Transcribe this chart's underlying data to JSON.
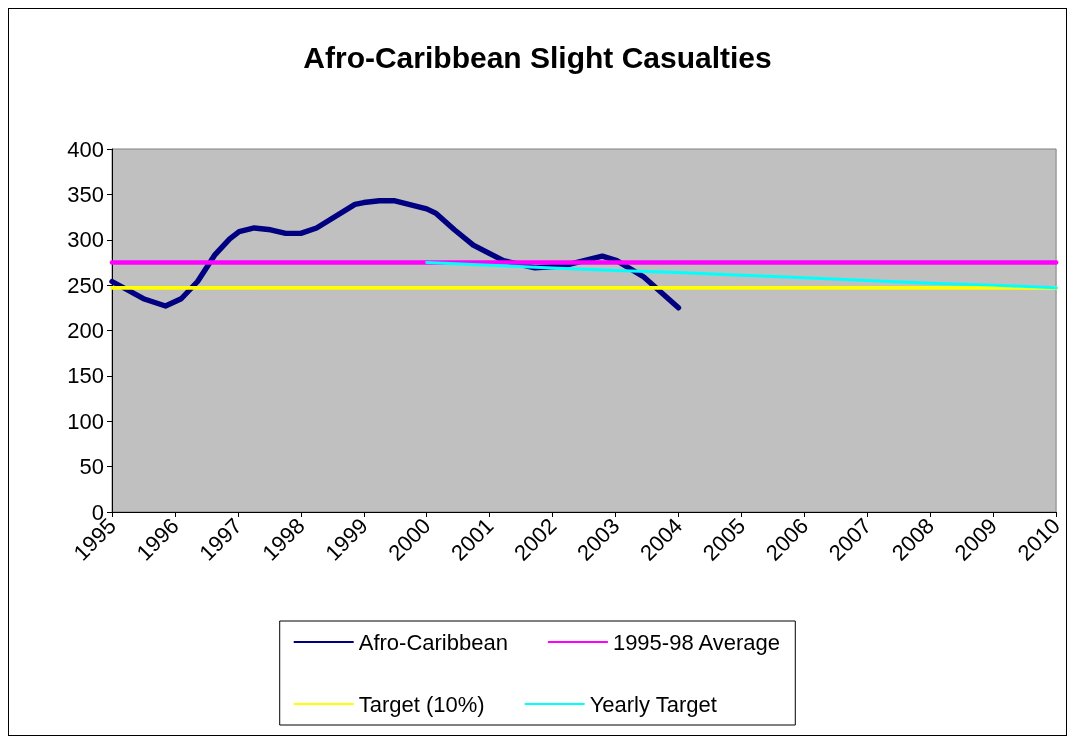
{
  "chart_data": {
    "type": "line",
    "title": "Afro-Caribbean Slight Casualties",
    "xlim": [
      1995,
      2010
    ],
    "xticks": [
      1995,
      1996,
      1997,
      1998,
      1999,
      2000,
      2001,
      2002,
      2003,
      2004,
      2005,
      2006,
      2007,
      2008,
      2009,
      2010
    ],
    "ylim": [
      0,
      400
    ],
    "yticks": [
      0,
      50,
      100,
      150,
      200,
      250,
      300,
      350,
      400
    ],
    "grid": false,
    "legend": "bottom",
    "marker": "none",
    "line_style": "solid",
    "series": [
      {
        "name": "Afro-Caribbean",
        "color": "#000080",
        "x": [
          1995,
          1995.5,
          1995.85,
          1996.1,
          1996.36,
          1996.63,
          1996.87,
          1997.02,
          1997.26,
          1997.52,
          1997.76,
          1998,
          1998.25,
          1998.86,
          1999,
          1999.25,
          1999.48,
          2000,
          2000.15,
          2000.44,
          2000.74,
          2001.22,
          2001.72,
          2002.15,
          2002.79,
          2003.02,
          2003.45,
          2004
        ],
        "values": [
          254,
          235,
          227,
          235,
          254,
          283,
          301,
          309,
          313,
          311,
          307,
          307,
          313,
          339,
          341,
          343,
          343,
          334,
          329,
          311,
          294,
          277,
          269,
          271,
          282,
          277,
          259,
          225
        ]
      },
      {
        "name": "1995-98 Average",
        "color": "#ff00ff",
        "x": [
          1995,
          2010
        ],
        "values": [
          275,
          275
        ]
      },
      {
        "name": "Target (10%)",
        "color": "#ffff00",
        "x": [
          1995,
          2010
        ],
        "values": [
          247,
          247
        ]
      },
      {
        "name": "Yearly Target",
        "color": "#00ffff",
        "x": [
          2000,
          2001,
          2002,
          2003,
          2004,
          2005,
          2006,
          2007,
          2008,
          2009,
          2010
        ],
        "values": [
          275,
          272,
          269,
          266,
          264,
          261,
          258,
          255,
          252,
          250,
          247
        ]
      }
    ]
  }
}
